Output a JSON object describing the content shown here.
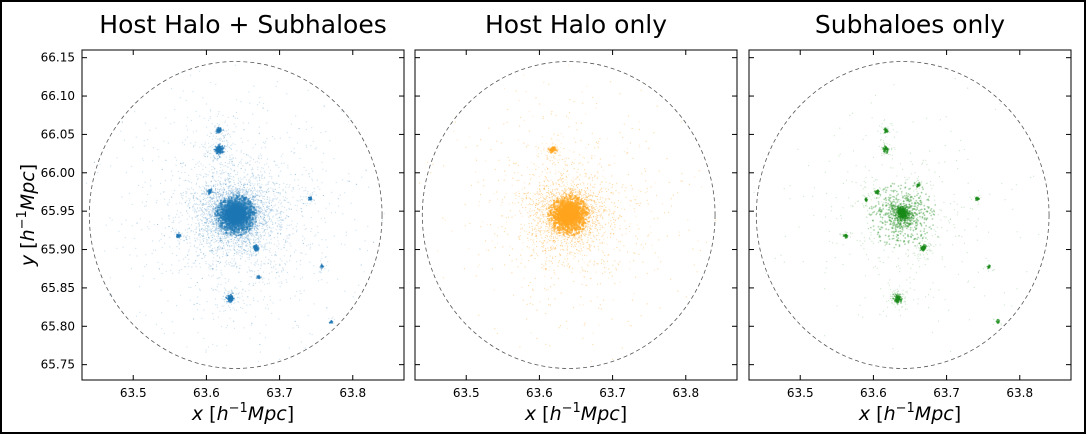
{
  "chart_data": [
    {
      "type": "scatter",
      "title": "Host Halo + Subhaloes",
      "xlabel": "x [h^-1 Mpc]",
      "ylabel": "y [h^-1 Mpc]",
      "xlim": [
        63.43,
        63.87
      ],
      "ylim": [
        65.73,
        66.16
      ],
      "xticks": [
        63.5,
        63.6,
        63.7,
        63.8
      ],
      "yticks": [
        65.75,
        65.8,
        65.85,
        65.9,
        65.95,
        66.0,
        66.05,
        66.1,
        66.15
      ],
      "color": "#1f77b4",
      "boundary_circle": {
        "center": [
          63.64,
          65.945
        ],
        "radius": 0.2
      },
      "host": {
        "center": [
          63.64,
          65.945
        ],
        "core_radius": 0.018,
        "points": 9000
      },
      "subhaloes": [
        {
          "x": 63.618,
          "y": 66.03,
          "r": 0.005,
          "n": 160
        },
        {
          "x": 63.617,
          "y": 66.055,
          "r": 0.003,
          "n": 60
        },
        {
          "x": 63.633,
          "y": 65.836,
          "r": 0.004,
          "n": 120
        },
        {
          "x": 63.668,
          "y": 65.902,
          "r": 0.003,
          "n": 80
        },
        {
          "x": 63.562,
          "y": 65.918,
          "r": 0.0025,
          "n": 35
        },
        {
          "x": 63.605,
          "y": 65.975,
          "r": 0.0025,
          "n": 35
        },
        {
          "x": 63.742,
          "y": 65.966,
          "r": 0.002,
          "n": 25
        },
        {
          "x": 63.758,
          "y": 65.878,
          "r": 0.002,
          "n": 18
        },
        {
          "x": 63.77,
          "y": 65.806,
          "r": 0.002,
          "n": 15
        },
        {
          "x": 63.672,
          "y": 65.864,
          "r": 0.002,
          "n": 18
        }
      ]
    },
    {
      "type": "scatter",
      "title": "Host Halo only",
      "xlabel": "x [h^-1 Mpc]",
      "xlim": [
        63.43,
        63.87
      ],
      "ylim": [
        65.73,
        66.16
      ],
      "xticks": [
        63.5,
        63.6,
        63.7,
        63.8
      ],
      "yticks": [
        65.75,
        65.8,
        65.85,
        65.9,
        65.95,
        66.0,
        66.05,
        66.1,
        66.15
      ],
      "color": "#ffa520",
      "boundary_circle": {
        "center": [
          63.64,
          65.945
        ],
        "radius": 0.2
      },
      "host": {
        "center": [
          63.64,
          65.945
        ],
        "core_radius": 0.018,
        "points": 9000
      },
      "subhaloes": [
        {
          "x": 63.618,
          "y": 66.03,
          "r": 0.004,
          "n": 90
        }
      ]
    },
    {
      "type": "scatter",
      "title": "Subhaloes only",
      "xlabel": "x [h^-1 Mpc]",
      "xlim": [
        63.43,
        63.87
      ],
      "ylim": [
        65.73,
        66.16
      ],
      "xticks": [
        63.5,
        63.6,
        63.7,
        63.8
      ],
      "yticks": [
        65.75,
        65.8,
        65.85,
        65.9,
        65.95,
        66.0,
        66.05,
        66.1,
        66.15
      ],
      "color": "#1a8a1a",
      "boundary_circle": {
        "center": [
          63.64,
          65.945
        ],
        "radius": 0.2
      },
      "host": {
        "center": [
          63.64,
          65.945
        ],
        "core_radius": 0.03,
        "points": 1200
      },
      "subhaloes": [
        {
          "x": 63.64,
          "y": 65.948,
          "r": 0.006,
          "n": 260
        },
        {
          "x": 63.617,
          "y": 66.03,
          "r": 0.003,
          "n": 50
        },
        {
          "x": 63.617,
          "y": 66.055,
          "r": 0.0025,
          "n": 40
        },
        {
          "x": 63.633,
          "y": 65.836,
          "r": 0.004,
          "n": 110
        },
        {
          "x": 63.668,
          "y": 65.902,
          "r": 0.003,
          "n": 80
        },
        {
          "x": 63.562,
          "y": 65.918,
          "r": 0.0025,
          "n": 30
        },
        {
          "x": 63.605,
          "y": 65.975,
          "r": 0.0025,
          "n": 30
        },
        {
          "x": 63.742,
          "y": 65.966,
          "r": 0.002,
          "n": 25
        },
        {
          "x": 63.758,
          "y": 65.878,
          "r": 0.002,
          "n": 18
        },
        {
          "x": 63.77,
          "y": 65.806,
          "r": 0.002,
          "n": 15
        },
        {
          "x": 63.662,
          "y": 65.984,
          "r": 0.002,
          "n": 20
        },
        {
          "x": 63.59,
          "y": 65.965,
          "r": 0.002,
          "n": 18
        }
      ]
    }
  ],
  "labels": {
    "xlabel_display": [
      "x",
      "h",
      "−1",
      "Mpc"
    ],
    "ylabel_display": [
      "y",
      "h",
      "−1",
      "Mpc"
    ],
    "ytick_text": [
      "65.75",
      "65.80",
      "65.85",
      "65.90",
      "65.95",
      "66.00",
      "66.05",
      "66.10",
      "66.15"
    ],
    "xtick_text": [
      "63.5",
      "63.6",
      "63.7",
      "63.8"
    ]
  }
}
